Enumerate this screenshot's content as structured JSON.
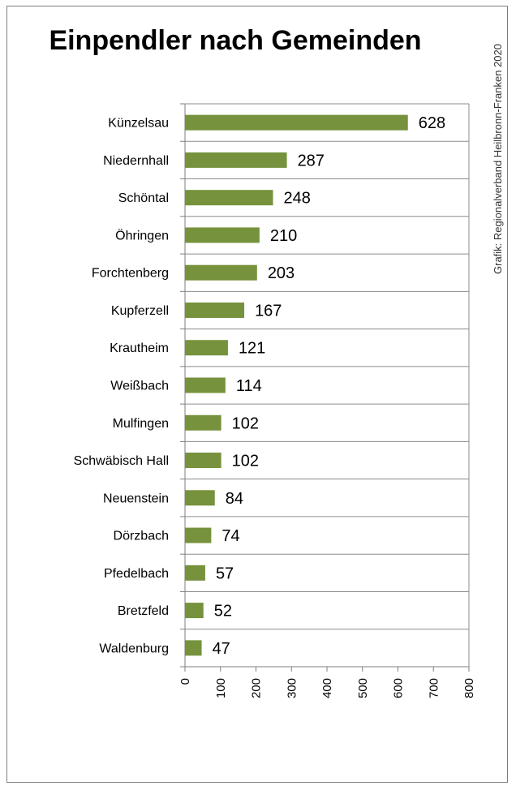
{
  "chart_data": {
    "type": "bar",
    "orientation": "horizontal",
    "title": "Einpendler nach Gemeinden",
    "credit": "Grafik: Regionalverband Heilbronn-Franken 2020",
    "categories": [
      "Künzelsau",
      "Niedernhall",
      "Schöntal",
      "Öhringen",
      "Forchtenberg",
      "Kupferzell",
      "Krautheim",
      "Weißbach",
      "Mulfingen",
      "Schwäbisch Hall",
      "Neuenstein",
      "Dörzbach",
      "Pfedelbach",
      "Bretzfeld",
      "Waldenburg"
    ],
    "values": [
      628,
      287,
      248,
      210,
      203,
      167,
      121,
      114,
      102,
      102,
      84,
      74,
      57,
      52,
      47
    ],
    "xlim": [
      0,
      800
    ],
    "xticks": [
      "0",
      "100",
      "200",
      "300",
      "400",
      "500",
      "600",
      "700",
      "800"
    ],
    "grid": true,
    "bar_color": "#76923c"
  }
}
